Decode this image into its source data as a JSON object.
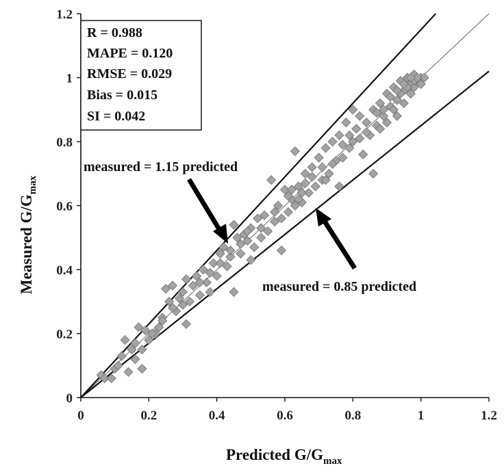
{
  "chart_data": {
    "type": "scatter",
    "xlabel": "Predicted G/G",
    "xlabel_sub": "max",
    "ylabel": "Measured G/G",
    "ylabel_sub": "max",
    "xlim": [
      0,
      1.2
    ],
    "ylim": [
      0,
      1.2
    ],
    "xticks": [
      "0",
      "0.2",
      "0.4",
      "0.6",
      "0.8",
      "1",
      "1.2"
    ],
    "yticks": [
      "0",
      "0.2",
      "0.4",
      "0.6",
      "0.8",
      "1",
      "1.2"
    ],
    "grid": false,
    "stats": [
      "R = 0.988",
      "MAPE  = 0.120",
      "RMSE  = 0.029",
      "Bias = 0.015",
      "SI = 0.042"
    ],
    "reference_lines": [
      {
        "label": "",
        "slope": 1.0
      },
      {
        "label": "measured = 1.15 predicted",
        "slope": 1.15
      },
      {
        "label": "measured = 0.85 predicted",
        "slope": 0.85
      }
    ],
    "points": [
      [
        0.06,
        0.07
      ],
      [
        0.07,
        0.06
      ],
      [
        0.09,
        0.06
      ],
      [
        0.1,
        0.09
      ],
      [
        0.12,
        0.13
      ],
      [
        0.13,
        0.18
      ],
      [
        0.14,
        0.08
      ],
      [
        0.15,
        0.15
      ],
      [
        0.16,
        0.12
      ],
      [
        0.17,
        0.22
      ],
      [
        0.18,
        0.15
      ],
      [
        0.18,
        0.09
      ],
      [
        0.19,
        0.21
      ],
      [
        0.2,
        0.18
      ],
      [
        0.22,
        0.2
      ],
      [
        0.23,
        0.22
      ],
      [
        0.24,
        0.25
      ],
      [
        0.25,
        0.34
      ],
      [
        0.26,
        0.3
      ],
      [
        0.27,
        0.35
      ],
      [
        0.28,
        0.27
      ],
      [
        0.29,
        0.31
      ],
      [
        0.3,
        0.33
      ],
      [
        0.31,
        0.23
      ],
      [
        0.31,
        0.37
      ],
      [
        0.32,
        0.3
      ],
      [
        0.33,
        0.35
      ],
      [
        0.34,
        0.38
      ],
      [
        0.35,
        0.32
      ],
      [
        0.36,
        0.4
      ],
      [
        0.37,
        0.36
      ],
      [
        0.38,
        0.33
      ],
      [
        0.39,
        0.42
      ],
      [
        0.4,
        0.38
      ],
      [
        0.41,
        0.45
      ],
      [
        0.42,
        0.47
      ],
      [
        0.43,
        0.41
      ],
      [
        0.44,
        0.44
      ],
      [
        0.45,
        0.54
      ],
      [
        0.45,
        0.33
      ],
      [
        0.46,
        0.5
      ],
      [
        0.47,
        0.45
      ],
      [
        0.48,
        0.51
      ],
      [
        0.49,
        0.49
      ],
      [
        0.5,
        0.53
      ],
      [
        0.5,
        0.43
      ],
      [
        0.51,
        0.47
      ],
      [
        0.52,
        0.56
      ],
      [
        0.53,
        0.5
      ],
      [
        0.54,
        0.57
      ],
      [
        0.55,
        0.52
      ],
      [
        0.56,
        0.68
      ],
      [
        0.57,
        0.55
      ],
      [
        0.58,
        0.6
      ],
      [
        0.59,
        0.56
      ],
      [
        0.59,
        0.46
      ],
      [
        0.6,
        0.65
      ],
      [
        0.61,
        0.58
      ],
      [
        0.62,
        0.62
      ],
      [
        0.63,
        0.77
      ],
      [
        0.63,
        0.6
      ],
      [
        0.64,
        0.66
      ],
      [
        0.65,
        0.61
      ],
      [
        0.66,
        0.7
      ],
      [
        0.67,
        0.64
      ],
      [
        0.68,
        0.72
      ],
      [
        0.69,
        0.66
      ],
      [
        0.7,
        0.75
      ],
      [
        0.71,
        0.68
      ],
      [
        0.72,
        0.78
      ],
      [
        0.73,
        0.7
      ],
      [
        0.74,
        0.8
      ],
      [
        0.75,
        0.74
      ],
      [
        0.76,
        0.82
      ],
      [
        0.77,
        0.75
      ],
      [
        0.78,
        0.86
      ],
      [
        0.79,
        0.78
      ],
      [
        0.8,
        0.9
      ],
      [
        0.8,
        0.8
      ],
      [
        0.81,
        0.84
      ],
      [
        0.82,
        0.88
      ],
      [
        0.83,
        0.76
      ],
      [
        0.84,
        0.86
      ],
      [
        0.85,
        0.82
      ],
      [
        0.86,
        0.9
      ],
      [
        0.86,
        0.7
      ],
      [
        0.87,
        0.85
      ],
      [
        0.88,
        0.92
      ],
      [
        0.89,
        0.88
      ],
      [
        0.9,
        0.95
      ],
      [
        0.9,
        0.86
      ],
      [
        0.91,
        0.91
      ],
      [
        0.92,
        0.97
      ],
      [
        0.93,
        0.93
      ],
      [
        0.93,
        0.88
      ],
      [
        0.94,
        0.99
      ],
      [
        0.95,
        0.96
      ],
      [
        0.95,
        0.92
      ],
      [
        0.96,
        1.0
      ],
      [
        0.97,
        0.98
      ],
      [
        0.97,
        0.95
      ],
      [
        0.98,
        1.01
      ],
      [
        0.98,
        0.97
      ],
      [
        0.99,
        0.99
      ],
      [
        1.0,
        1.0
      ],
      [
        1.0,
        0.98
      ],
      [
        1.01,
        1.0
      ],
      [
        0.96,
        0.97
      ],
      [
        0.94,
        0.95
      ],
      [
        0.92,
        0.9
      ],
      [
        0.88,
        0.84
      ],
      [
        0.76,
        0.66
      ],
      [
        0.72,
        0.68
      ],
      [
        0.65,
        0.64
      ],
      [
        0.61,
        0.63
      ],
      [
        0.57,
        0.58
      ],
      [
        0.53,
        0.53
      ],
      [
        0.49,
        0.52
      ],
      [
        0.47,
        0.48
      ],
      [
        0.44,
        0.46
      ],
      [
        0.41,
        0.42
      ],
      [
        0.38,
        0.39
      ],
      [
        0.35,
        0.36
      ],
      [
        0.3,
        0.29
      ],
      [
        0.27,
        0.28
      ],
      [
        0.24,
        0.24
      ],
      [
        0.21,
        0.2
      ],
      [
        0.16,
        0.17
      ],
      [
        0.11,
        0.1
      ],
      [
        0.98,
        0.99
      ],
      [
        0.99,
        1.0
      ],
      [
        0.95,
        0.98
      ],
      [
        0.97,
        1.0
      ],
      [
        0.93,
        0.96
      ],
      [
        0.91,
        0.94
      ],
      [
        0.89,
        0.9
      ],
      [
        0.87,
        0.89
      ],
      [
        0.84,
        0.83
      ],
      [
        0.82,
        0.81
      ],
      [
        0.79,
        0.82
      ],
      [
        0.77,
        0.79
      ],
      [
        0.74,
        0.73
      ],
      [
        0.71,
        0.72
      ],
      [
        0.68,
        0.69
      ],
      [
        0.66,
        0.67
      ],
      [
        0.64,
        0.62
      ],
      [
        0.62,
        0.65
      ]
    ]
  }
}
